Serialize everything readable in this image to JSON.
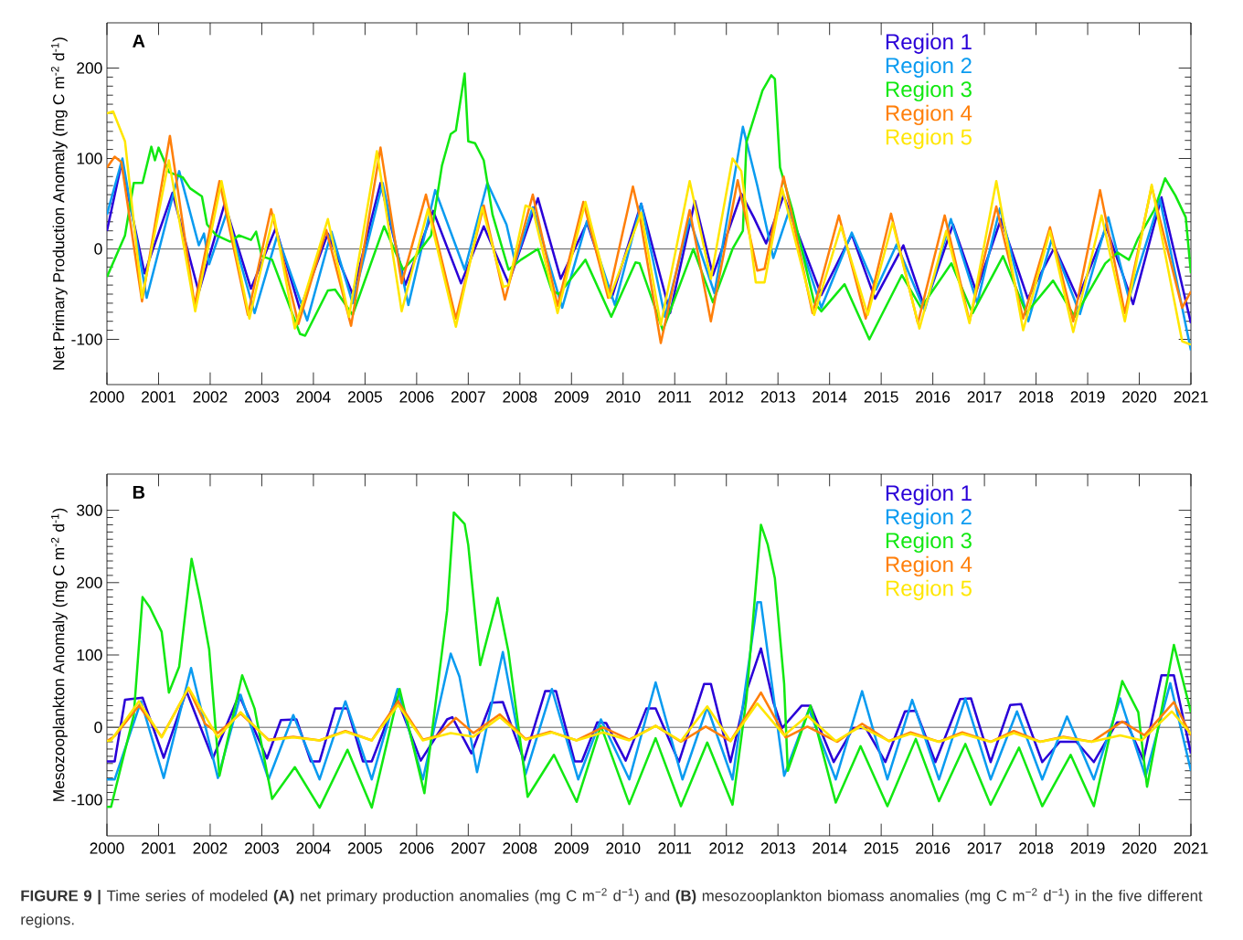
{
  "chart_data": [
    {
      "type": "line",
      "title": "A",
      "ylabel": "Net Primary Production Anomaly (mg C m$^{-2}$ d$^{-1}$)",
      "xlim": [
        2000,
        2021
      ],
      "xticks": [
        2000,
        2001,
        2002,
        2003,
        2004,
        2005,
        2006,
        2007,
        2008,
        2009,
        2010,
        2011,
        2012,
        2013,
        2014,
        2015,
        2016,
        2017,
        2018,
        2019,
        2020,
        2021
      ],
      "ylim": [
        -150,
        250
      ],
      "yticks": [
        -100,
        0,
        100,
        200
      ],
      "legend": "top right",
      "ref_lines": [
        {
          "axis": "y",
          "value": 0,
          "color": "#555555"
        }
      ],
      "series": [
        {
          "name": "Region 1",
          "color": "#2a00d8",
          "x": [
            2000,
            2000.28,
            2000.73,
            2001.27,
            2001.78,
            2002.28,
            2002.79,
            2003.27,
            2003.74,
            2004.28,
            2004.76,
            2005.3,
            2005.78,
            2006.32,
            2006.86,
            2007.3,
            2007.78,
            2008.35,
            2008.79,
            2009.3,
            2009.78,
            2010.35,
            2010.91,
            2011.39,
            2011.74,
            2012.29,
            2012.53,
            2012.77,
            2013.11,
            2013.84,
            2014.43,
            2014.88,
            2015.43,
            2015.84,
            2016.39,
            2016.84,
            2017.32,
            2017.84,
            2018.36,
            2018.81,
            2019.36,
            2019.88,
            2020.43,
            2021
          ],
          "values": [
            20,
            94,
            -27,
            62,
            -48,
            50,
            -44,
            23,
            -67,
            17,
            -50,
            73,
            -40,
            42,
            -38,
            25,
            -38,
            56,
            -33,
            29,
            -54,
            50,
            -71,
            53,
            -29,
            61,
            35,
            6,
            59,
            -51,
            16,
            -55,
            4,
            -65,
            27,
            -47,
            33,
            -55,
            2,
            -55,
            24,
            -61,
            57,
            -82
          ]
        },
        {
          "name": "Region 2",
          "color": "#0a9bf0",
          "x": [
            2000,
            2000.3,
            2000.77,
            2001.4,
            2001.78,
            2001.88,
            2001.98,
            2002.32,
            2002.86,
            2003.3,
            2003.88,
            2004.35,
            2004.76,
            2005.34,
            2005.84,
            2006.36,
            2006.93,
            2007.37,
            2007.74,
            2007.91,
            2008.25,
            2008.82,
            2009.3,
            2009.84,
            2010.35,
            2010.81,
            2011.29,
            2011.77,
            2012.32,
            2012.6,
            2012.91,
            2013.22,
            2013.84,
            2014.43,
            2014.9,
            2015.3,
            2015.84,
            2016.35,
            2016.86,
            2017.3,
            2017.85,
            2018.3,
            2018.85,
            2019.4,
            2019.8,
            2020.4,
            2021
          ],
          "values": [
            38,
            100,
            -54,
            86,
            4,
            17,
            -17,
            40,
            -71,
            15,
            -79,
            19,
            -60,
            73,
            -62,
            65,
            -23,
            73,
            27,
            -15,
            46,
            -65,
            31,
            -62,
            50,
            -75,
            33,
            -49,
            135,
            70,
            -10,
            43,
            -65,
            18,
            -45,
            5,
            -68,
            33,
            -60,
            45,
            -80,
            10,
            -72,
            35,
            -55,
            55,
            -112
          ]
        },
        {
          "name": "Region 3",
          "color": "#12e812",
          "x": [
            2000,
            2000.35,
            2000.52,
            2000.69,
            2000.86,
            2000.93,
            2001.0,
            2001.2,
            2001.47,
            2001.61,
            2001.84,
            2001.94,
            2002.12,
            2002.39,
            2002.56,
            2002.79,
            2002.89,
            2003.0,
            2003.2,
            2003.74,
            2003.84,
            2004.28,
            2004.42,
            2004.76,
            2005.37,
            2005.74,
            2005.98,
            2006.28,
            2006.49,
            2006.66,
            2006.76,
            2006.93,
            2007.0,
            2007.13,
            2007.3,
            2007.47,
            2007.78,
            2008.02,
            2008.35,
            2008.62,
            2008.76,
            2009.27,
            2009.77,
            2010.24,
            2010.32,
            2010.77,
            2011.36,
            2011.74,
            2012.12,
            2012.32,
            2012.39,
            2012.7,
            2012.87,
            2012.94,
            2013.04,
            2013.28,
            2013.7,
            2013.84,
            2014.29,
            2014.77,
            2015.4,
            2015.77,
            2016.36,
            2016.77,
            2017.36,
            2017.81,
            2018.33,
            2018.75,
            2019.34,
            2019.58,
            2019.8,
            2019.98,
            2020.29,
            2020.5,
            2020.7,
            2020.9,
            2021
          ],
          "values": [
            -31,
            15,
            73,
            73,
            113,
            98,
            112,
            85,
            79,
            67,
            58,
            27,
            15,
            8,
            15,
            10,
            19,
            -8,
            -12,
            -94,
            -96,
            -46,
            -45,
            -73,
            25,
            -23,
            -8,
            15,
            92,
            127,
            131,
            194,
            119,
            117,
            98,
            38,
            -23,
            -12,
            0,
            -46,
            -50,
            -12,
            -75,
            -15,
            -16,
            -90,
            0,
            -59,
            0,
            20,
            118,
            175,
            192,
            188,
            90,
            43,
            -59,
            -69,
            -39,
            -100,
            -29,
            -65,
            -16,
            -71,
            -8,
            -71,
            -35,
            -75,
            -16,
            -4,
            -12,
            12,
            43,
            78,
            59,
            35,
            -27
          ]
        },
        {
          "name": "Region 4",
          "color": "#ff7f0a",
          "x": [
            2000,
            2000.15,
            2000.28,
            2000.68,
            2001.22,
            2001.7,
            2002.18,
            2002.73,
            2003.18,
            2003.71,
            2004.25,
            2004.73,
            2005.3,
            2005.71,
            2006.18,
            2006.76,
            2007.3,
            2007.71,
            2008.25,
            2008.73,
            2009.23,
            2009.71,
            2010.19,
            2010.32,
            2010.73,
            2011.29,
            2011.7,
            2012.22,
            2012.6,
            2012.74,
            2013.11,
            2013.67,
            2014.18,
            2014.7,
            2015.19,
            2015.71,
            2016.23,
            2016.71,
            2017.23,
            2017.75,
            2018.27,
            2018.72,
            2019.24,
            2019.72,
            2020.24,
            2020.83,
            2021
          ],
          "values": [
            90,
            102,
            96,
            -58,
            125,
            -62,
            75,
            -73,
            44,
            -83,
            21,
            -85,
            112,
            -38,
            60,
            -77,
            48,
            -56,
            60,
            -63,
            52,
            -54,
            69,
            37,
            -104,
            43,
            -80,
            76,
            -24,
            -22,
            80,
            -71,
            37,
            -77,
            39,
            -82,
            37,
            -80,
            47,
            -77,
            24,
            -80,
            65,
            -71,
            69,
            -65,
            -47
          ]
        },
        {
          "name": "Region 5",
          "color": "#ffe600",
          "x": [
            2000,
            2000.12,
            2000.35,
            2000.68,
            2001.2,
            2001.71,
            2002.22,
            2002.76,
            2003.23,
            2003.64,
            2004.28,
            2004.69,
            2005.23,
            2005.71,
            2006.22,
            2006.76,
            2007.27,
            2007.68,
            2007.78,
            2008.11,
            2008.25,
            2008.73,
            2009.27,
            2009.74,
            2010.35,
            2010.73,
            2011.29,
            2011.7,
            2012.12,
            2012.29,
            2012.57,
            2012.74,
            2013.08,
            2013.7,
            2014.22,
            2014.74,
            2015.22,
            2015.74,
            2016.26,
            2016.71,
            2017.23,
            2017.75,
            2018.27,
            2018.72,
            2019.27,
            2019.72,
            2020.24,
            2020.83,
            2021
          ],
          "values": [
            150,
            152,
            119,
            -54,
            98,
            -69,
            75,
            -77,
            38,
            -88,
            33,
            -75,
            108,
            -69,
            44,
            -86,
            46,
            -42,
            -40,
            48,
            44,
            -71,
            52,
            -54,
            40,
            -84,
            75,
            -33,
            100,
            86,
            -37,
            -37,
            67,
            -73,
            25,
            -73,
            29,
            -88,
            20,
            -82,
            75,
            -90,
            20,
            -92,
            37,
            -80,
            71,
            -102,
            -106
          ]
        }
      ]
    },
    {
      "type": "line",
      "title": "B",
      "ylabel": "Mesozooplankton Anomaly (mg C m$^{-2}$ d$^{-1}$)",
      "xlim": [
        2000,
        2021
      ],
      "xticks": [
        2000,
        2001,
        2002,
        2003,
        2004,
        2005,
        2006,
        2007,
        2008,
        2009,
        2010,
        2011,
        2012,
        2013,
        2014,
        2015,
        2016,
        2017,
        2018,
        2019,
        2020,
        2021
      ],
      "ylim": [
        -150,
        350
      ],
      "yticks": [
        -100,
        0,
        100,
        200,
        300
      ],
      "legend": "top right",
      "ref_lines": [
        {
          "axis": "y",
          "value": 0,
          "color": "#555555"
        }
      ],
      "annotations": [
        "**FIGURE 9 |** Time series of modeled **(A)** net primary production anomalies (mg C m$^{−2}$ d$^{−1}$) and **(B)** mesozooplankton biomass anomalies (mg C m$^{−2}$ d$^{−1}$) in the five different regions."
      ],
      "series": [
        {
          "name": "Region 1",
          "color": "#2a00d8",
          "x": [
            2000,
            2000.15,
            2000.35,
            2000.69,
            2001.1,
            2001.54,
            2002.05,
            2002.56,
            2003.1,
            2003.37,
            2003.67,
            2003.95,
            2004.12,
            2004.42,
            2004.66,
            2004.96,
            2005.13,
            2005.61,
            2006.08,
            2006.59,
            2006.69,
            2007.06,
            2007.44,
            2007.67,
            2008.08,
            2008.49,
            2008.7,
            2009.06,
            2009.2,
            2009.5,
            2009.67,
            2010.05,
            2010.45,
            2010.63,
            2011.08,
            2011.57,
            2011.7,
            2012.08,
            2012.39,
            2012.67,
            2012.91,
            2013.08,
            2013.46,
            2013.63,
            2014.08,
            2014.46,
            2014.7,
            2015.08,
            2015.46,
            2015.67,
            2016.05,
            2016.53,
            2016.74,
            2017.12,
            2017.5,
            2017.71,
            2018.12,
            2018.46,
            2018.78,
            2019.12,
            2019.57,
            2019.75,
            2020.08,
            2020.43,
            2020.67,
            2021
          ],
          "values": [
            -47,
            -47,
            38,
            41,
            -42,
            50,
            -43,
            45,
            -43,
            10,
            11,
            -47,
            -47,
            26,
            26,
            -47,
            -47,
            42,
            -46,
            11,
            14,
            -36,
            34,
            35,
            -46,
            50,
            50,
            -47,
            -47,
            7,
            6,
            -46,
            26,
            26,
            -48,
            60,
            60,
            -48,
            50,
            109,
            35,
            -1,
            30,
            30,
            -48,
            -1,
            -1,
            -48,
            22,
            23,
            -48,
            39,
            40,
            -48,
            31,
            32,
            -48,
            -20,
            -20,
            -48,
            7,
            7,
            -45,
            72,
            72,
            -36
          ]
        },
        {
          "name": "Region 2",
          "color": "#0a9bf0",
          "x": [
            2000,
            2000.15,
            2000.66,
            2001.1,
            2001.63,
            2002.15,
            2002.59,
            2003.13,
            2003.61,
            2004.12,
            2004.62,
            2005.13,
            2005.63,
            2006.12,
            2006.66,
            2006.83,
            2007.17,
            2007.67,
            2008.11,
            2008.62,
            2009.13,
            2009.57,
            2010.12,
            2010.63,
            2011.15,
            2011.63,
            2012.12,
            2012.6,
            2012.67,
            2013.12,
            2013.6,
            2014.12,
            2014.63,
            2015.12,
            2015.6,
            2016.12,
            2016.63,
            2017.12,
            2017.63,
            2018.12,
            2018.6,
            2019.12,
            2019.63,
            2020.12,
            2020.6,
            2021
          ],
          "values": [
            -72,
            -72,
            36,
            -70,
            82,
            -70,
            45,
            -72,
            17,
            -72,
            36,
            -72,
            53,
            -72,
            102,
            70,
            -62,
            104,
            -65,
            53,
            -72,
            11,
            -72,
            62,
            -72,
            28,
            -72,
            173,
            173,
            -67,
            25,
            -72,
            50,
            -72,
            38,
            -72,
            40,
            -72,
            22,
            -72,
            15,
            -72,
            40,
            -68,
            61,
            -60
          ]
        },
        {
          "name": "Region 3",
          "color": "#12e812",
          "x": [
            2000,
            2000.08,
            2000.52,
            2000.69,
            2000.83,
            2001.06,
            2001.2,
            2001.4,
            2001.64,
            2001.81,
            2001.98,
            2002.18,
            2002.62,
            2002.86,
            2003.2,
            2003.64,
            2004.12,
            2004.66,
            2005.13,
            2005.67,
            2006.15,
            2006.59,
            2006.72,
            2006.93,
            2007.0,
            2007.23,
            2007.57,
            2007.78,
            2008.15,
            2008.66,
            2009.1,
            2009.57,
            2010.12,
            2010.63,
            2011.12,
            2011.63,
            2012.12,
            2012.39,
            2012.67,
            2012.8,
            2012.94,
            2013.12,
            2013.19,
            2013.63,
            2014.12,
            2014.6,
            2015.12,
            2015.67,
            2016.12,
            2016.63,
            2017.12,
            2017.67,
            2018.12,
            2018.67,
            2019.12,
            2019.67,
            2019.98,
            2020.15,
            2020.67,
            2021
          ],
          "values": [
            -110,
            -110,
            17,
            180,
            166,
            132,
            48,
            84,
            233,
            175,
            108,
            -67,
            72,
            26,
            -99,
            -55,
            -111,
            -31,
            -111,
            53,
            -91,
            161,
            297,
            281,
            252,
            86,
            179,
            104,
            -96,
            -38,
            -103,
            2,
            -106,
            -15,
            -109,
            -21,
            -107,
            40,
            280,
            253,
            206,
            60,
            -60,
            30,
            -104,
            -26,
            -109,
            -16,
            -102,
            -23,
            -107,
            -28,
            -109,
            -38,
            -109,
            64,
            21,
            -82,
            114,
            21
          ]
        },
        {
          "name": "Region 4",
          "color": "#ff7f0a",
          "x": [
            2000,
            2000.15,
            2000.62,
            2001.06,
            2001.58,
            2001.9,
            2002.15,
            2002.59,
            2003.13,
            2003.61,
            2004.12,
            2004.62,
            2005.13,
            2005.64,
            2006.12,
            2006.39,
            2006.76,
            2007.1,
            2007.61,
            2008.11,
            2008.59,
            2009.1,
            2009.61,
            2010.12,
            2010.63,
            2011.12,
            2011.6,
            2012.08,
            2012.67,
            2013.15,
            2013.57,
            2014.15,
            2014.63,
            2015.15,
            2015.57,
            2016.12,
            2016.57,
            2017.12,
            2017.57,
            2018.08,
            2018.53,
            2019.08,
            2019.67,
            2020.1,
            2020.67,
            2021
          ],
          "values": [
            -19,
            -12,
            30,
            -13,
            54,
            5,
            -8,
            19,
            -17,
            -13,
            -18,
            -5,
            -18,
            36,
            -17,
            -12,
            13,
            -8,
            18,
            -16,
            -6,
            -18,
            0,
            -17,
            2,
            -20,
            1,
            -19,
            48,
            -14,
            1,
            -20,
            5,
            -19,
            -7,
            -20,
            -7,
            -20,
            -5,
            -20,
            -13,
            -20,
            8,
            -11,
            35,
            -11
          ]
        },
        {
          "name": "Region 5",
          "color": "#ffe600",
          "x": [
            2000,
            2000.08,
            2000.62,
            2001.06,
            2001.58,
            2002.15,
            2002.59,
            2003.13,
            2003.61,
            2004.12,
            2004.62,
            2005.13,
            2005.64,
            2006.12,
            2006.66,
            2007.1,
            2007.61,
            2008.11,
            2008.62,
            2009.1,
            2009.61,
            2010.12,
            2010.63,
            2011.12,
            2011.63,
            2012.08,
            2012.6,
            2013.12,
            2013.57,
            2014.12,
            2014.6,
            2015.15,
            2015.57,
            2016.12,
            2016.57,
            2017.12,
            2017.57,
            2018.08,
            2018.53,
            2019.08,
            2019.63,
            2020.05,
            2020.63,
            2021
          ],
          "values": [
            -19,
            -18,
            36,
            -14,
            55,
            -14,
            21,
            -18,
            -14,
            -18,
            -6,
            -18,
            31,
            -18,
            -8,
            -13,
            14,
            -17,
            -7,
            -18,
            -7,
            -18,
            2,
            -19,
            29,
            -19,
            33,
            -11,
            16,
            -19,
            1,
            -19,
            -9,
            -20,
            -9,
            -20,
            -8,
            -20,
            -14,
            -20,
            -11,
            -18,
            22,
            -9
          ]
        }
      ]
    }
  ]
}
